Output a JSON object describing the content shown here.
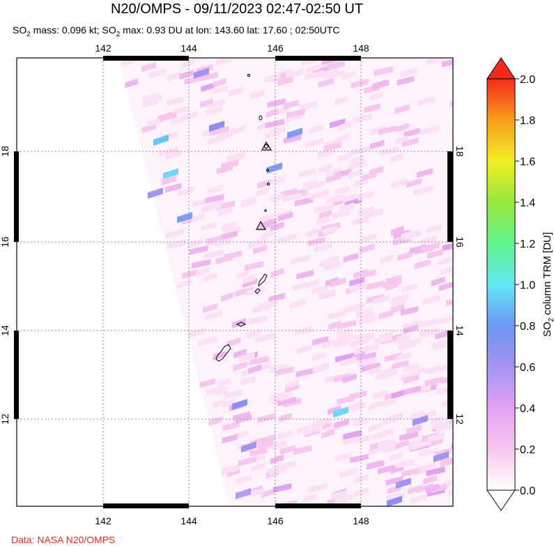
{
  "header": {
    "title": "N20/OMPS - 09/11/2023 02:47-02:50 UT",
    "so2_label": "SO",
    "sub2": "2",
    "mass_text": " mass: 0.096 kt; SO",
    "max_text": " max: 0.93 DU at lon: 143.60 lat: 17.60 ; 02:50UTC"
  },
  "map": {
    "lon_ticks": [
      "142",
      "144",
      "146",
      "148"
    ],
    "lat_ticks": [
      "18",
      "16",
      "14",
      "12"
    ]
  },
  "colorbar": {
    "ticks": [
      "2.0",
      "1.8",
      "1.6",
      "1.4",
      "1.2",
      "1.0",
      "0.8",
      "0.6",
      "0.4",
      "0.2",
      "0.0"
    ],
    "label_prefix": "SO",
    "label_sub": "2",
    "label_suffix": " column TRM [DU]",
    "colors": [
      "#ffffff",
      "#f7c7ef",
      "#e2a2f4",
      "#a395f0",
      "#6a97f2",
      "#61e7f3",
      "#62f38a",
      "#96e83a",
      "#f0ee25",
      "#f89e1b",
      "#f5291b"
    ]
  },
  "footer": {
    "credit": "Data: NASA N20/OMPS"
  }
}
